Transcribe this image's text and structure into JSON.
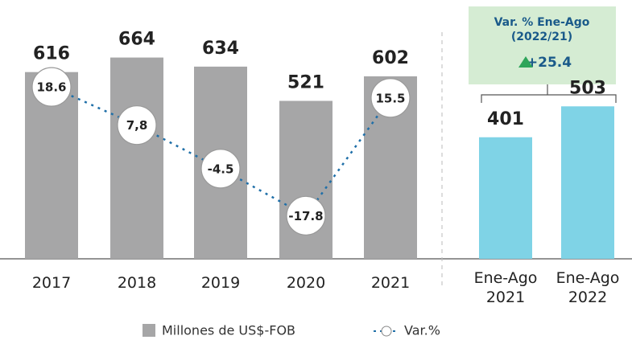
{
  "chart_data": {
    "type": "bar_line",
    "categories": [
      "2017",
      "2018",
      "2019",
      "2020",
      "2021",
      "Ene-Ago 2021",
      "Ene-Ago 2022"
    ],
    "ylim": [
      0,
      700
    ],
    "y2lim": [
      -30,
      30
    ],
    "series": [
      {
        "name": "Millones de US$-FOB",
        "type": "bar",
        "color": "#a6a6a7",
        "colors": [
          "#a6a6a7",
          "#a6a6a7",
          "#a6a6a7",
          "#a6a6a7",
          "#a6a6a7",
          "#7fd3e6",
          "#7fd3e6"
        ],
        "values": [
          616,
          664,
          634,
          521,
          602,
          401,
          503
        ]
      },
      {
        "name": "Var.%",
        "type": "line",
        "axis": "y2",
        "color": "#1f6fa8",
        "values": [
          18.6,
          7.8,
          -4.5,
          -17.8,
          15.5,
          null,
          null
        ],
        "value_labels": [
          "18.6",
          "7,8",
          "-4.5",
          "-17.8",
          "15.5",
          null,
          null
        ]
      }
    ],
    "annotation": {
      "lines": [
        "Var. % Ene-Ago",
        "(2022/21)"
      ],
      "value": 25.4,
      "label": "+25.4",
      "color": "#2ea55a"
    }
  }
}
